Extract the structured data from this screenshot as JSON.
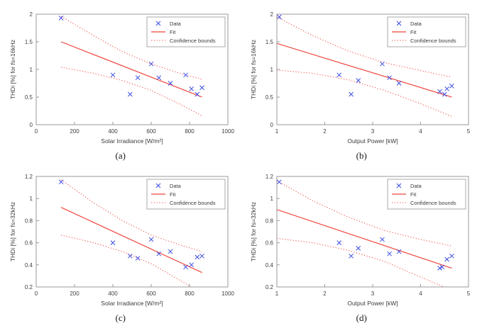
{
  "figure": {
    "background": "#ffffff"
  },
  "colors": {
    "marker": "#3b4ce0",
    "fit": "#ef453c",
    "bound": "#ef453c",
    "axis": "#9a9a9a",
    "tick_text": "#404040",
    "label_text": "#3c3c3c",
    "legend_border": "#aaaaaa",
    "legend_bg": "#ffffff"
  },
  "chart_data": [
    {
      "id": "a",
      "caption": "(a)",
      "type": "scatter",
      "xlabel": "Solar Irradiance [W/m²]",
      "ylabel": "THDi [%] for fs=16kHz",
      "xlim": [
        0,
        1000
      ],
      "ylim": [
        0,
        2
      ],
      "xticks": [
        0,
        200,
        400,
        600,
        800,
        1000
      ],
      "yticks": [
        0,
        0.5,
        1,
        1.5,
        2
      ],
      "legend": [
        "Data",
        "Fit",
        "Confidence bounds"
      ],
      "legend_position": "northeast",
      "grid": false,
      "data_x": [
        130,
        400,
        490,
        530,
        600,
        640,
        700,
        780,
        810,
        840,
        865
      ],
      "data_y": [
        1.93,
        0.9,
        0.55,
        0.85,
        1.1,
        0.85,
        0.75,
        0.9,
        0.65,
        0.55,
        0.67
      ],
      "fit_x": [
        130,
        865
      ],
      "fit_y": [
        1.5,
        0.5
      ],
      "upper_x": [
        130,
        300,
        450,
        600,
        750,
        865
      ],
      "upper_y": [
        1.96,
        1.61,
        1.32,
        1.1,
        0.93,
        0.82
      ],
      "lower_x": [
        130,
        300,
        450,
        600,
        750,
        865
      ],
      "lower_y": [
        1.04,
        0.93,
        0.8,
        0.62,
        0.37,
        0.16
      ]
    },
    {
      "id": "b",
      "caption": "(b)",
      "type": "scatter",
      "xlabel": "Output Power [kW]",
      "ylabel": "THDi [%] for fs=16kHz",
      "xlim": [
        1,
        5
      ],
      "ylim": [
        0,
        2
      ],
      "xticks": [
        1,
        2,
        3,
        4,
        5
      ],
      "yticks": [
        0,
        0.5,
        1,
        1.5,
        2
      ],
      "legend": [
        "Data",
        "Fit",
        "Confidence bounds"
      ],
      "legend_position": "northeast",
      "grid": false,
      "data_x": [
        1.05,
        2.3,
        2.55,
        2.7,
        3.2,
        3.35,
        3.55,
        4.4,
        4.5,
        4.55,
        4.65
      ],
      "data_y": [
        1.95,
        0.9,
        0.55,
        0.8,
        1.1,
        0.85,
        0.75,
        0.6,
        0.55,
        0.65,
        0.7
      ],
      "fit_x": [
        1.0,
        4.65
      ],
      "fit_y": [
        1.47,
        0.5
      ],
      "upper_x": [
        1.0,
        1.75,
        2.5,
        3.25,
        4.0,
        4.65
      ],
      "upper_y": [
        1.95,
        1.61,
        1.33,
        1.12,
        0.98,
        0.86
      ],
      "lower_x": [
        1.0,
        1.75,
        2.5,
        3.25,
        4.0,
        4.65
      ],
      "lower_y": [
        0.99,
        0.93,
        0.81,
        0.62,
        0.38,
        0.15
      ]
    },
    {
      "id": "c",
      "caption": "(c)",
      "type": "scatter",
      "xlabel": "Solar Irradiance [W/m²]",
      "ylabel": "THDi [%] for fs=32kHz",
      "xlim": [
        0,
        1000
      ],
      "ylim": [
        0.2,
        1.2
      ],
      "xticks": [
        0,
        200,
        400,
        600,
        800,
        1000
      ],
      "yticks": [
        0.2,
        0.4,
        0.6,
        0.8,
        1,
        1.2
      ],
      "legend": [
        "Data",
        "Fit",
        "Confidence bounds"
      ],
      "legend_position": "northeast",
      "grid": false,
      "data_x": [
        130,
        400,
        490,
        530,
        600,
        640,
        700,
        780,
        810,
        840,
        865
      ],
      "data_y": [
        1.15,
        0.6,
        0.48,
        0.46,
        0.63,
        0.5,
        0.52,
        0.38,
        0.4,
        0.47,
        0.48
      ],
      "fit_x": [
        130,
        865
      ],
      "fit_y": [
        0.92,
        0.33
      ],
      "upper_x": [
        130,
        300,
        450,
        600,
        750,
        865
      ],
      "upper_y": [
        1.17,
        0.96,
        0.8,
        0.67,
        0.58,
        0.52
      ],
      "lower_x": [
        130,
        300,
        450,
        600,
        750,
        865
      ],
      "lower_y": [
        0.67,
        0.6,
        0.52,
        0.41,
        0.26,
        0.14
      ]
    },
    {
      "id": "d",
      "caption": "(d)",
      "type": "scatter",
      "xlabel": "Output Power [kW]",
      "ylabel": "THDi [%] for fs=32kHz",
      "xlim": [
        1,
        5
      ],
      "ylim": [
        0.2,
        1.2
      ],
      "xticks": [
        1,
        2,
        3,
        4,
        5
      ],
      "yticks": [
        0.2,
        0.4,
        0.6,
        0.8,
        1,
        1.2
      ],
      "legend": [
        "Data",
        "Fit",
        "Confidence bounds"
      ],
      "legend_position": "northeast",
      "grid": false,
      "data_x": [
        1.05,
        2.3,
        2.55,
        2.7,
        3.2,
        3.35,
        3.55,
        4.4,
        4.45,
        4.55,
        4.65
      ],
      "data_y": [
        1.15,
        0.6,
        0.48,
        0.55,
        0.63,
        0.5,
        0.52,
        0.37,
        0.38,
        0.45,
        0.48
      ],
      "fit_x": [
        1.0,
        4.65
      ],
      "fit_y": [
        0.9,
        0.37
      ],
      "upper_x": [
        1.0,
        1.75,
        2.5,
        3.25,
        4.0,
        4.65
      ],
      "upper_y": [
        1.16,
        0.98,
        0.83,
        0.71,
        0.63,
        0.57
      ],
      "lower_x": [
        1.0,
        1.75,
        2.5,
        3.25,
        4.0,
        4.65
      ],
      "lower_y": [
        0.64,
        0.6,
        0.53,
        0.43,
        0.29,
        0.17
      ]
    }
  ]
}
